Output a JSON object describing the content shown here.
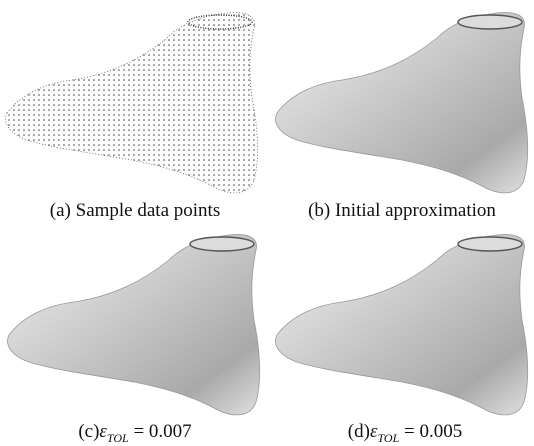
{
  "panels": [
    {
      "label": "(a)",
      "caption": "Sample data points"
    },
    {
      "label": "(b)",
      "caption": "Initial approximation"
    },
    {
      "label": "(c)",
      "symbol": "ε",
      "subscript": "TOL",
      "caption": "= 0.007"
    },
    {
      "label": "(d)",
      "symbol": "ε",
      "subscript": "TOL",
      "caption": "= 0.005"
    }
  ]
}
